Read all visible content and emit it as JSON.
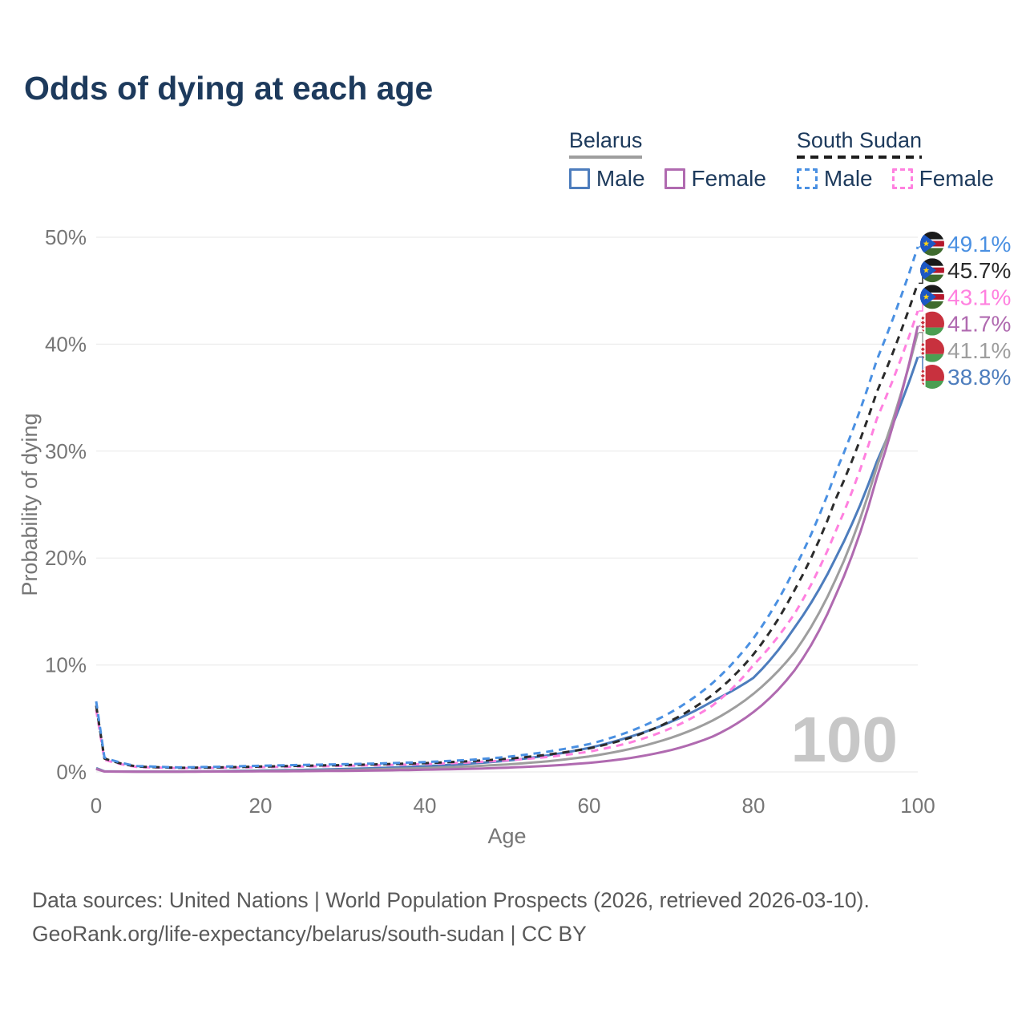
{
  "title": "Odds of dying at each age",
  "watermark": "100",
  "legend": {
    "groups": [
      {
        "name": "Belarus",
        "underline": "solid",
        "underline_color": "#9e9e9e",
        "items": [
          {
            "label": "Male",
            "color": "#4d7dbd",
            "dashed": false
          },
          {
            "label": "Female",
            "color": "#b06ab0",
            "dashed": false
          }
        ]
      },
      {
        "name": "South Sudan",
        "underline": "dashed",
        "underline_color": "#1d1d1d",
        "items": [
          {
            "label": "Male",
            "color": "#4a90e2",
            "dashed": true
          },
          {
            "label": "Female",
            "color": "#ff80df",
            "dashed": true
          }
        ]
      }
    ]
  },
  "footer": {
    "line1": "Data sources: United Nations | World Population Prospects (2026, retrieved 2026-03-10).",
    "line2": "GeoRank.org/life-expectancy/belarus/south-sudan | CC BY"
  },
  "chart_data": {
    "type": "line",
    "title": "Odds of dying at each age",
    "xlabel": "Age",
    "ylabel": "Probability of dying",
    "xlim": [
      0,
      100
    ],
    "ylim": [
      0,
      50
    ],
    "x_ticks": [
      0,
      20,
      40,
      60,
      80,
      100
    ],
    "y_ticks_pct": [
      0,
      10,
      20,
      30,
      40,
      50
    ],
    "grid": "horizontal",
    "legend_position": "top-right",
    "ages": [
      0,
      1,
      5,
      10,
      15,
      20,
      25,
      30,
      35,
      40,
      45,
      50,
      55,
      60,
      65,
      70,
      75,
      80,
      85,
      90,
      95,
      100
    ],
    "series": [
      {
        "name": "South Sudan Male",
        "country": "South Sudan",
        "sex": "Male",
        "flag": "south-sudan",
        "color": "#4a90e2",
        "dashed": true,
        "end_label": "49.1%",
        "values": [
          6.6,
          1.35,
          0.55,
          0.42,
          0.48,
          0.58,
          0.65,
          0.72,
          0.8,
          0.92,
          1.1,
          1.4,
          1.9,
          2.6,
          3.8,
          5.6,
          8.3,
          12.5,
          19,
          28,
          38.5,
          49.1
        ]
      },
      {
        "name": "South Sudan Both sexes",
        "country": "South Sudan",
        "sex": "Both",
        "flag": "south-sudan",
        "color": "#2b2b2b",
        "dashed": true,
        "end_label": "45.7%",
        "values": [
          6.2,
          1.25,
          0.5,
          0.38,
          0.42,
          0.5,
          0.57,
          0.64,
          0.72,
          0.82,
          0.98,
          1.22,
          1.62,
          2.2,
          3.2,
          4.8,
          7.2,
          11,
          17,
          25.5,
          35.5,
          45.7
        ]
      },
      {
        "name": "South Sudan Female",
        "country": "South Sudan",
        "sex": "Female",
        "flag": "south-sudan",
        "color": "#ff80df",
        "dashed": true,
        "end_label": "43.1%",
        "values": [
          5.8,
          1.15,
          0.46,
          0.35,
          0.38,
          0.44,
          0.5,
          0.56,
          0.64,
          0.73,
          0.87,
          1.08,
          1.4,
          1.9,
          2.75,
          4.1,
          6.2,
          10,
          14.8,
          22.5,
          33,
          43.1
        ]
      },
      {
        "name": "Belarus Female",
        "country": "Belarus",
        "sex": "Female",
        "flag": "belarus",
        "color": "#b06ab0",
        "dashed": false,
        "end_label": "41.7%",
        "values": [
          0.27,
          0.035,
          0.02,
          0.02,
          0.035,
          0.05,
          0.07,
          0.1,
          0.14,
          0.2,
          0.28,
          0.4,
          0.57,
          0.85,
          1.3,
          2.05,
          3.3,
          5.6,
          9.5,
          16.5,
          27.5,
          41.7
        ]
      },
      {
        "name": "Belarus Both sexes",
        "country": "Belarus",
        "sex": "Both",
        "flag": "belarus",
        "color": "#9e9e9e",
        "dashed": false,
        "end_label": "41.1%",
        "values": [
          0.3,
          0.04,
          0.025,
          0.025,
          0.05,
          0.09,
          0.13,
          0.18,
          0.26,
          0.36,
          0.5,
          0.7,
          1,
          1.45,
          2.15,
          3.2,
          4.8,
          7.3,
          11.2,
          18,
          28.5,
          41.1
        ]
      },
      {
        "name": "Belarus Male",
        "country": "Belarus",
        "sex": "Male",
        "flag": "belarus",
        "color": "#4d7dbd",
        "dashed": false,
        "end_label": "38.8%",
        "values": [
          0.35,
          0.05,
          0.03,
          0.03,
          0.07,
          0.13,
          0.19,
          0.27,
          0.38,
          0.53,
          0.75,
          1.05,
          1.55,
          2.25,
          3.3,
          4.7,
          6.6,
          8.8,
          13.5,
          20,
          29,
          38.8
        ]
      }
    ]
  }
}
